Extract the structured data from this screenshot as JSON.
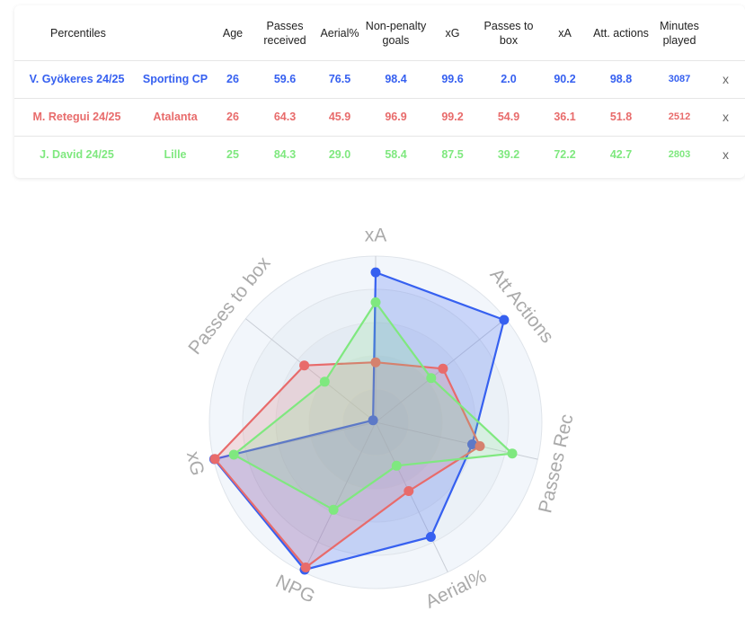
{
  "table": {
    "headers": [
      "Percentiles",
      "Age",
      "Passes received",
      "Aerial%",
      "Non-penalty goals",
      "xG",
      "Passes to box",
      "xA",
      "Att. actions",
      "Minutes played"
    ],
    "rows": [
      {
        "player": "V. Gyökeres 24/25",
        "team": "Sporting CP",
        "age": "26",
        "passes_received": "59.6",
        "aerial": "76.5",
        "npg": "98.4",
        "xg": "99.6",
        "passes_to_box": "2.0",
        "xa": "90.2",
        "att_actions": "98.8",
        "minutes": "3087",
        "remove": "x"
      },
      {
        "player": "M. Retegui 24/25",
        "team": "Atalanta",
        "age": "26",
        "passes_received": "64.3",
        "aerial": "45.9",
        "npg": "96.9",
        "xg": "99.2",
        "passes_to_box": "54.9",
        "xa": "36.1",
        "att_actions": "51.8",
        "minutes": "2512",
        "remove": "x"
      },
      {
        "player": "J. David 24/25",
        "team": "Lille",
        "age": "25",
        "passes_received": "84.3",
        "aerial": "29.0",
        "npg": "58.4",
        "xg": "87.5",
        "passes_to_box": "39.2",
        "xa": "72.2",
        "att_actions": "42.7",
        "minutes": "2803",
        "remove": "x"
      }
    ]
  },
  "chart_data": {
    "type": "radar",
    "axes": [
      "xA",
      "Att Actions",
      "Passes Rec",
      "Aerial%",
      "NPG",
      "xG",
      "Passes to box"
    ],
    "range": [
      0,
      100
    ],
    "grid": true,
    "series": [
      {
        "name": "V. Gyökeres 24/25",
        "color": "#3660f0",
        "fill": "rgba(54,96,240,0.22)",
        "values": [
          90.2,
          98.8,
          59.6,
          76.5,
          98.4,
          99.6,
          2.0
        ]
      },
      {
        "name": "M. Retegui 24/25",
        "color": "#e86b6b",
        "fill": "rgba(232,107,107,0.18)",
        "values": [
          36.1,
          51.8,
          64.3,
          45.9,
          96.9,
          99.2,
          54.9
        ]
      },
      {
        "name": "J. David 24/25",
        "color": "#7fe87f",
        "fill": "rgba(127,232,127,0.18)",
        "values": [
          72.2,
          42.7,
          84.3,
          29.0,
          58.4,
          87.5,
          39.2
        ]
      }
    ]
  }
}
